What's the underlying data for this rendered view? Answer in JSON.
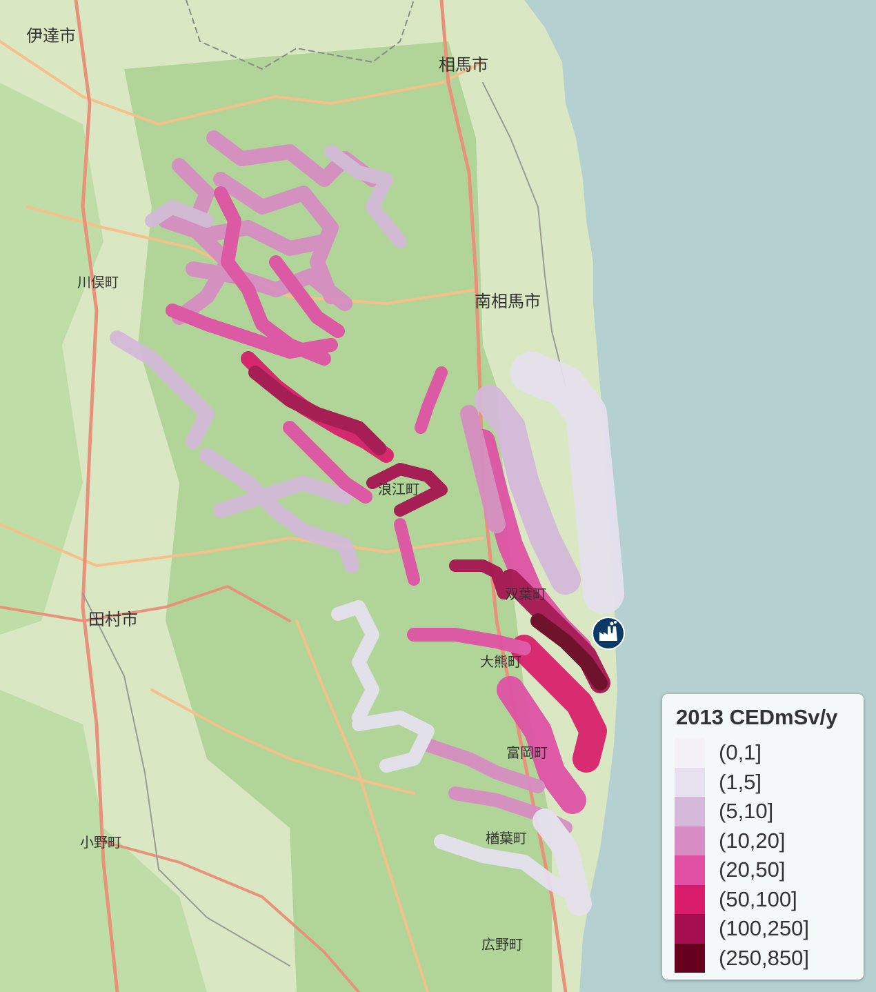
{
  "map": {
    "places": [
      {
        "name": "伊達市"
      },
      {
        "name": "相馬市"
      },
      {
        "name": "川俣町"
      },
      {
        "name": "南相馬市"
      },
      {
        "name": "浪江町"
      },
      {
        "name": "田村市"
      },
      {
        "name": "双葉町"
      },
      {
        "name": "大熊町"
      },
      {
        "name": "富岡町"
      },
      {
        "name": "小野町"
      },
      {
        "name": "楢葉町"
      },
      {
        "name": "広野町"
      }
    ],
    "marker_icon": "nuclear-plant-icon"
  },
  "legend": {
    "title": "2013 CEDmSv/y",
    "items": [
      {
        "label": "(0,1]",
        "color": "#f4f0f7"
      },
      {
        "label": "(1,5]",
        "color": "#e7e1ef"
      },
      {
        "label": "(5,10]",
        "color": "#d4b9da"
      },
      {
        "label": "(10,20]",
        "color": "#d78cc4"
      },
      {
        "label": "(20,50]",
        "color": "#e04fa4"
      },
      {
        "label": "(50,100]",
        "color": "#d81b6a"
      },
      {
        "label": "(100,250]",
        "color": "#a50f4f"
      },
      {
        "label": "(250,850]",
        "color": "#67001f"
      }
    ]
  },
  "colors": {
    "land": "#cfe3b5",
    "forest": "#a8d28c",
    "sea": "#b5d0d0",
    "road_major": "#e8927c",
    "road_minor": "#f5c08a"
  }
}
